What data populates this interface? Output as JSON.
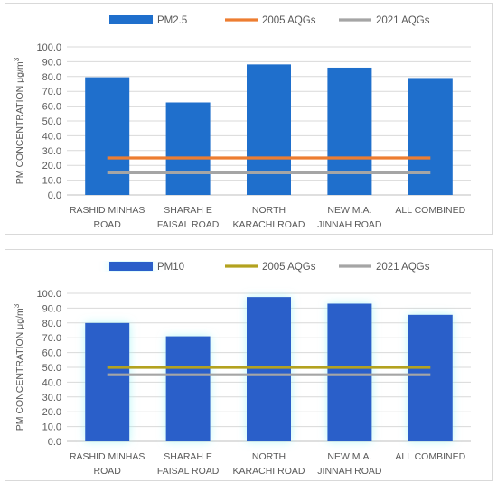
{
  "chart_data": [
    {
      "type": "bar",
      "categories": [
        [
          "RASHID MINHAS",
          "ROAD"
        ],
        [
          "SHARAH E",
          "FAISAL ROAD"
        ],
        [
          "NORTH",
          "KARACHI ROAD"
        ],
        [
          "NEW M.A.",
          "JINNAH ROAD"
        ],
        [
          "ALL COMBINED"
        ]
      ],
      "series": [
        {
          "name": "PM2.5",
          "kind": "bar",
          "color": "#1f6fcc",
          "values": [
            79.5,
            62.5,
            88.2,
            86.0,
            79.0
          ]
        },
        {
          "name": "2005 AQGs",
          "kind": "line",
          "color": "#ed7d31",
          "values": [
            25,
            25,
            25,
            25,
            25
          ]
        },
        {
          "name": "2021 AQGs",
          "kind": "line",
          "color": "#a5a5a5",
          "values": [
            15,
            15,
            15,
            15,
            15
          ]
        }
      ],
      "ylabel_main": "PM CONCENTRATION μg/m",
      "ylabel_sup": "3",
      "ylim": [
        0,
        100
      ],
      "yticks": [
        "0.0",
        "10.0",
        "20.0",
        "30.0",
        "40.0",
        "50.0",
        "60.0",
        "70.0",
        "80.0",
        "90.0",
        "100.0"
      ],
      "legend_position": "top-center",
      "bar_glow": false
    },
    {
      "type": "bar",
      "categories": [
        [
          "RASHID MINHAS",
          "ROAD"
        ],
        [
          "SHARAH E",
          "FAISAL ROAD"
        ],
        [
          "NORTH",
          "KARACHI ROAD"
        ],
        [
          "NEW M.A.",
          "JINNAH ROAD"
        ],
        [
          "ALL COMBINED"
        ]
      ],
      "series": [
        {
          "name": "PM10",
          "kind": "bar",
          "color": "#2a5fc9",
          "values": [
            80.0,
            71.0,
            97.5,
            93.0,
            85.5
          ]
        },
        {
          "name": "2005 AQGs",
          "kind": "line",
          "color": "#b3a21f",
          "values": [
            50,
            50,
            50,
            50,
            50
          ]
        },
        {
          "name": "2021 AQGs",
          "kind": "line",
          "color": "#a5a5a5",
          "values": [
            45,
            45,
            45,
            45,
            45
          ]
        }
      ],
      "ylabel_main": "PM CONCENTRATION μg/m",
      "ylabel_sup": "3",
      "ylim": [
        0,
        100
      ],
      "yticks": [
        "0.0",
        "10.0",
        "20.0",
        "30.0",
        "40.0",
        "50.0",
        "60.0",
        "70.0",
        "80.0",
        "90.0",
        "100.0"
      ],
      "legend_position": "top-center",
      "bar_glow": true
    }
  ]
}
